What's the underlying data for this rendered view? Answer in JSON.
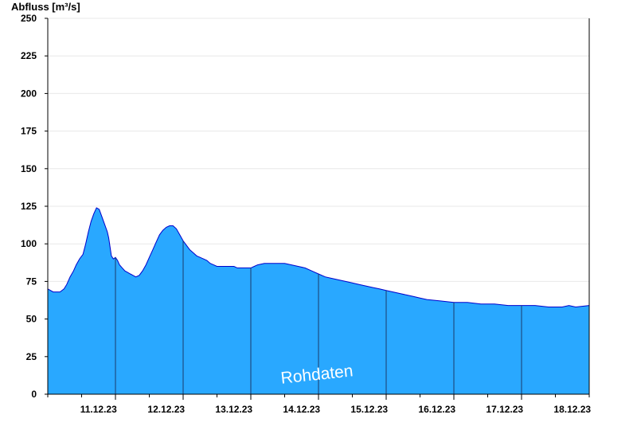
{
  "chart_data": {
    "type": "area",
    "title": "",
    "ylabel": "Abfluss [m³/s]",
    "xlabel": "",
    "ylim": [
      0,
      250
    ],
    "yticks": [
      0,
      25,
      50,
      75,
      100,
      125,
      150,
      175,
      200,
      225,
      250
    ],
    "xlim": [
      0,
      8
    ],
    "xtick_labels": [
      "11.12.23",
      "12.12.23",
      "13.12.23",
      "14.12.23",
      "15.12.23",
      "16.12.23",
      "17.12.23",
      "18.12.23"
    ],
    "xtick_positions": [
      0.75,
      1.75,
      2.75,
      3.75,
      4.75,
      5.75,
      6.75,
      7.75
    ],
    "day_boundaries": [
      1,
      2,
      3,
      4,
      5,
      6,
      7
    ],
    "grid": true,
    "annotation": "Rohdaten",
    "colors": {
      "fill": "#29a8ff",
      "line": "#0000cc",
      "grid": "#e8e8e8",
      "divider": "#1a3a6a"
    },
    "series": [
      {
        "x": [
          0.0,
          0.04,
          0.08,
          0.12,
          0.18,
          0.24,
          0.28,
          0.33,
          0.38,
          0.42,
          0.47,
          0.52,
          0.56,
          0.6,
          0.64,
          0.68,
          0.72,
          0.76,
          0.8,
          0.84,
          0.88,
          0.9,
          0.92,
          0.94,
          0.97,
          1.0,
          1.03,
          1.06,
          1.1,
          1.14,
          1.18,
          1.22,
          1.26,
          1.3,
          1.35,
          1.4,
          1.45,
          1.5,
          1.55,
          1.6,
          1.65,
          1.7,
          1.75,
          1.8,
          1.85,
          1.9,
          1.95,
          2.0,
          2.05,
          2.1,
          2.15,
          2.2,
          2.25,
          2.3,
          2.35,
          2.4,
          2.45,
          2.5,
          2.55,
          2.6,
          2.65,
          2.7,
          2.75,
          2.8,
          2.85,
          2.9,
          2.95,
          3.0,
          3.05,
          3.1,
          3.2,
          3.3,
          3.4,
          3.5,
          3.6,
          3.7,
          3.8,
          3.9,
          4.0,
          4.1,
          4.2,
          4.3,
          4.4,
          4.5,
          4.6,
          4.7,
          4.8,
          4.9,
          5.0,
          5.1,
          5.2,
          5.3,
          5.4,
          5.5,
          5.6,
          5.8,
          6.0,
          6.2,
          6.4,
          6.6,
          6.8,
          7.0,
          7.2,
          7.4,
          7.6,
          7.7,
          7.8,
          8.0
        ],
        "values": [
          70,
          69,
          68,
          68,
          68,
          70,
          73,
          78,
          82,
          86,
          90,
          93,
          100,
          108,
          115,
          120,
          124,
          123,
          118,
          113,
          108,
          104,
          98,
          92,
          90,
          91,
          89,
          86,
          84,
          82,
          81,
          80,
          79,
          78,
          79,
          82,
          86,
          91,
          96,
          101,
          106,
          109,
          111,
          112,
          112,
          110,
          106,
          102,
          99,
          96,
          94,
          92,
          91,
          90,
          89,
          87,
          86,
          85,
          85,
          85,
          85,
          85,
          85,
          84,
          84,
          84,
          84,
          84,
          85,
          86,
          87,
          87,
          87,
          87,
          86,
          85,
          84,
          82,
          80,
          78,
          77,
          76,
          75,
          74,
          73,
          72,
          71,
          70,
          69,
          68,
          67,
          66,
          65,
          64,
          63,
          62,
          61,
          61,
          60,
          60,
          59,
          59,
          59,
          58,
          58,
          59,
          58,
          59
        ]
      }
    ]
  }
}
